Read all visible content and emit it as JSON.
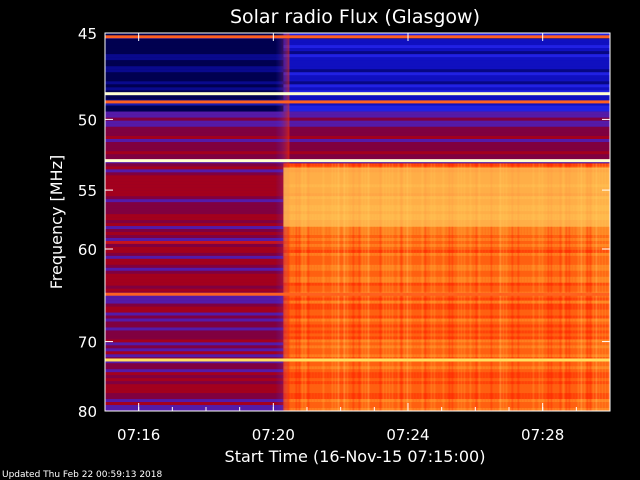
{
  "chart_data": {
    "type": "heatmap",
    "title": "Solar radio Flux (Glasgow)",
    "xlabel": "Start Time (16-Nov-15 07:15:00)",
    "ylabel": "Frequency [MHz]",
    "x_tick_labels": [
      "07:16",
      "07:20",
      "07:24",
      "07:28"
    ],
    "x_tick_minutes": [
      16,
      20,
      24,
      28
    ],
    "x_range_minutes": [
      15.0,
      30.0
    ],
    "y_tick_labels": [
      "45",
      "50",
      "55",
      "60",
      "70",
      "80"
    ],
    "y_tick_values": [
      45,
      50,
      55,
      60,
      70,
      80
    ],
    "y_range_mhz": [
      45,
      80
    ],
    "y_scale": "reciprocal",
    "x_scale": "time",
    "onset_minute": 20.3,
    "colormap": [
      "#000050",
      "#1010c0",
      "#3030ff",
      "#800040",
      "#c00000",
      "#ff2000",
      "#ff6010",
      "#ffa030",
      "#ffd060",
      "#fff0a0",
      "#ffffff"
    ],
    "regions": [
      {
        "label": "pre-onset-low",
        "freq_mhz": [
          45,
          49.5
        ],
        "time_min": [
          15.0,
          20.3
        ],
        "level": 0.08
      },
      {
        "label": "post-onset-low",
        "freq_mhz": [
          45,
          49.5
        ],
        "time_min": [
          20.3,
          30.0
        ],
        "level": 0.15
      },
      {
        "label": "mid-band",
        "freq_mhz": [
          49.5,
          53
        ],
        "time_min": [
          15.0,
          30.0
        ],
        "level": 0.3
      },
      {
        "label": "pre-onset-high",
        "freq_mhz": [
          53,
          80
        ],
        "time_min": [
          15.0,
          20.3
        ],
        "level": 0.35
      },
      {
        "label": "post-onset-high",
        "freq_mhz": [
          53,
          80
        ],
        "time_min": [
          20.3,
          30.0
        ],
        "level": 0.6
      }
    ],
    "horizontal_lines_mhz": [
      45.2,
      48.4,
      48.9,
      52.8,
      64.5,
      72.4
    ],
    "grid": false,
    "legend": "none"
  },
  "footer": {
    "updated": "Updated Thu Feb 22 00:59:13 2018"
  }
}
